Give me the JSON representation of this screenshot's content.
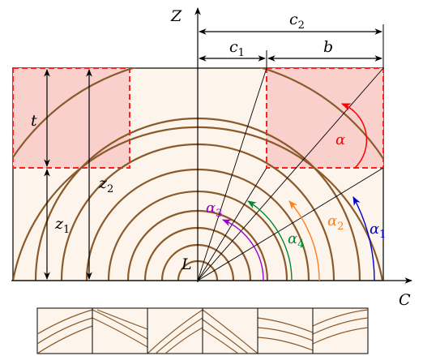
{
  "labels": {
    "z_axis": "Z",
    "c_axis": "C",
    "c1": "c",
    "c1_sub": "1",
    "c2": "c",
    "c2_sub": "2",
    "b": "b",
    "t": "t",
    "z1": "z",
    "z1_sub": "1",
    "z2": "z",
    "z2_sub": "2",
    "L": "L",
    "alpha": "α",
    "alpha1": "α",
    "alpha1_sub": "1",
    "alpha2": "α",
    "alpha2_sub": "2",
    "alpha3": "α",
    "alpha3_sub": "3",
    "alpha4": "α",
    "alpha4_sub": "4"
  },
  "colors": {
    "wood_fill": "#fdf4ec",
    "ring": "#8b5a2b",
    "board_fill": "#f9d0cc",
    "board_dash": "#ff1f1f",
    "alpha": "#ff0000",
    "alpha1": "#0000cc",
    "alpha2": "#ff7f1a",
    "alpha3": "#9900cc",
    "alpha4": "#008833"
  }
}
